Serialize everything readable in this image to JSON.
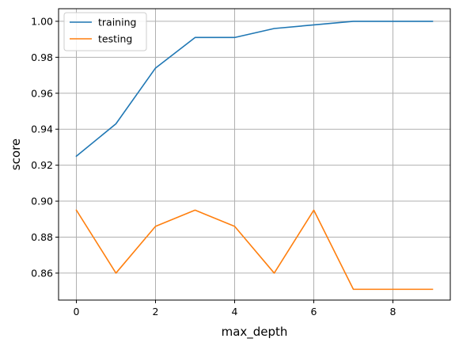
{
  "chart_data": {
    "type": "line",
    "title": "",
    "xlabel": "max_depth",
    "ylabel": "score",
    "x": [
      0,
      1,
      2,
      3,
      4,
      5,
      6,
      7,
      8,
      9
    ],
    "xlim": [
      -0.45,
      9.45
    ],
    "ylim": [
      0.845,
      1.007
    ],
    "xticks": [
      0,
      2,
      4,
      6,
      8
    ],
    "yticks": [
      0.86,
      0.88,
      0.9,
      0.92,
      0.94,
      0.96,
      0.98,
      1.0
    ],
    "xtick_labels": [
      "0",
      "2",
      "4",
      "6",
      "8"
    ],
    "ytick_labels": [
      "0.86",
      "0.88",
      "0.90",
      "0.92",
      "0.94",
      "0.96",
      "0.98",
      "1.00"
    ],
    "grid": true,
    "legend_position": "top-left",
    "series": [
      {
        "name": "training",
        "color": "#1f77b4",
        "values": [
          0.925,
          0.943,
          0.974,
          0.991,
          0.991,
          0.996,
          0.998,
          1.0,
          1.0,
          1.0
        ]
      },
      {
        "name": "testing",
        "color": "#ff7f0e",
        "values": [
          0.895,
          0.86,
          0.886,
          0.895,
          0.886,
          0.86,
          0.895,
          0.851,
          0.851,
          0.851
        ]
      }
    ]
  }
}
